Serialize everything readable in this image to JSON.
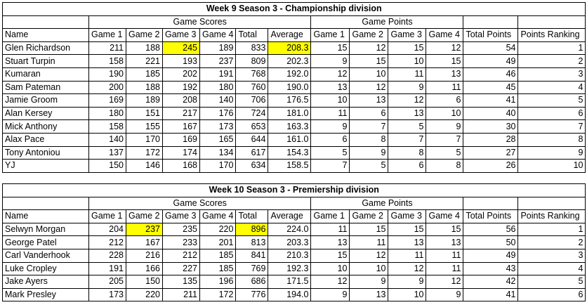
{
  "highlight_color": "#ffff00",
  "tables": [
    {
      "title": "Week 9 Season 3 - Championship division",
      "group_scores": "Game Scores",
      "group_points": "Game Points",
      "headers": [
        "Name",
        "Game 1",
        "Game 2",
        "Game 3",
        "Game 4",
        "Total",
        "Average",
        "Game 1",
        "Game 2",
        "Game 3",
        "Game 4",
        "Total Points",
        "Points Ranking"
      ],
      "rows": [
        [
          "Glen Richardson",
          "211",
          "188",
          "245",
          "189",
          "833",
          "208.3",
          "15",
          "12",
          "15",
          "12",
          "54",
          "1"
        ],
        [
          "Stuart Turpin",
          "158",
          "221",
          "193",
          "237",
          "809",
          "202.3",
          "9",
          "15",
          "10",
          "15",
          "49",
          "2"
        ],
        [
          "Kumaran",
          "190",
          "185",
          "202",
          "191",
          "768",
          "192.0",
          "12",
          "10",
          "11",
          "13",
          "46",
          "3"
        ],
        [
          "Sam Pateman",
          "200",
          "188",
          "192",
          "180",
          "760",
          "190.0",
          "13",
          "12",
          "9",
          "11",
          "45",
          "4"
        ],
        [
          "Jamie Groom",
          "169",
          "189",
          "208",
          "140",
          "706",
          "176.5",
          "10",
          "13",
          "12",
          "6",
          "41",
          "5"
        ],
        [
          "Alan Kersey",
          "180",
          "151",
          "217",
          "176",
          "724",
          "181.0",
          "11",
          "6",
          "13",
          "10",
          "40",
          "6"
        ],
        [
          "Mick Anthony",
          "158",
          "155",
          "167",
          "173",
          "653",
          "163.3",
          "9",
          "7",
          "5",
          "9",
          "30",
          "7"
        ],
        [
          "Alax Pace",
          "140",
          "170",
          "169",
          "165",
          "644",
          "161.0",
          "6",
          "8",
          "7",
          "7",
          "28",
          "8"
        ],
        [
          "Tony Antoniou",
          "137",
          "172",
          "174",
          "134",
          "617",
          "154.3",
          "5",
          "9",
          "8",
          "5",
          "27",
          "9"
        ],
        [
          "YJ",
          "150",
          "146",
          "168",
          "170",
          "634",
          "158.5",
          "7",
          "5",
          "6",
          "8",
          "26",
          "10"
        ]
      ],
      "highlighted": [
        [
          0,
          3
        ],
        [
          0,
          6
        ]
      ]
    },
    {
      "title": "Week 10 Season 3 - Premiership division",
      "group_scores": "Game Scores",
      "group_points": "Game Points",
      "headers": [
        "Name",
        "Game 1",
        "Game 2",
        "Game 3",
        "Game 4",
        "Total",
        "Average",
        "Game 1",
        "Game 2",
        "Game 3",
        "Game 4",
        "Total Points",
        "Points Ranking"
      ],
      "rows": [
        [
          "Selwyn Morgan",
          "204",
          "237",
          "235",
          "220",
          "896",
          "224.0",
          "11",
          "15",
          "15",
          "15",
          "56",
          "1"
        ],
        [
          "George Patel",
          "212",
          "167",
          "233",
          "201",
          "813",
          "203.3",
          "13",
          "11",
          "13",
          "13",
          "50",
          "2"
        ],
        [
          "Carl Vanderhook",
          "228",
          "216",
          "212",
          "185",
          "841",
          "210.3",
          "15",
          "12",
          "11",
          "11",
          "49",
          "3"
        ],
        [
          "Luke Cropley",
          "191",
          "166",
          "227",
          "185",
          "769",
          "192.3",
          "10",
          "10",
          "12",
          "11",
          "43",
          "4"
        ],
        [
          "Jake Ayers",
          "205",
          "150",
          "135",
          "196",
          "686",
          "171.5",
          "12",
          "9",
          "9",
          "12",
          "42",
          "5"
        ],
        [
          "Mark Presley",
          "173",
          "220",
          "211",
          "172",
          "776",
          "194.0",
          "9",
          "13",
          "10",
          "9",
          "41",
          "6"
        ]
      ],
      "highlighted": [
        [
          0,
          2
        ],
        [
          0,
          5
        ]
      ]
    }
  ]
}
